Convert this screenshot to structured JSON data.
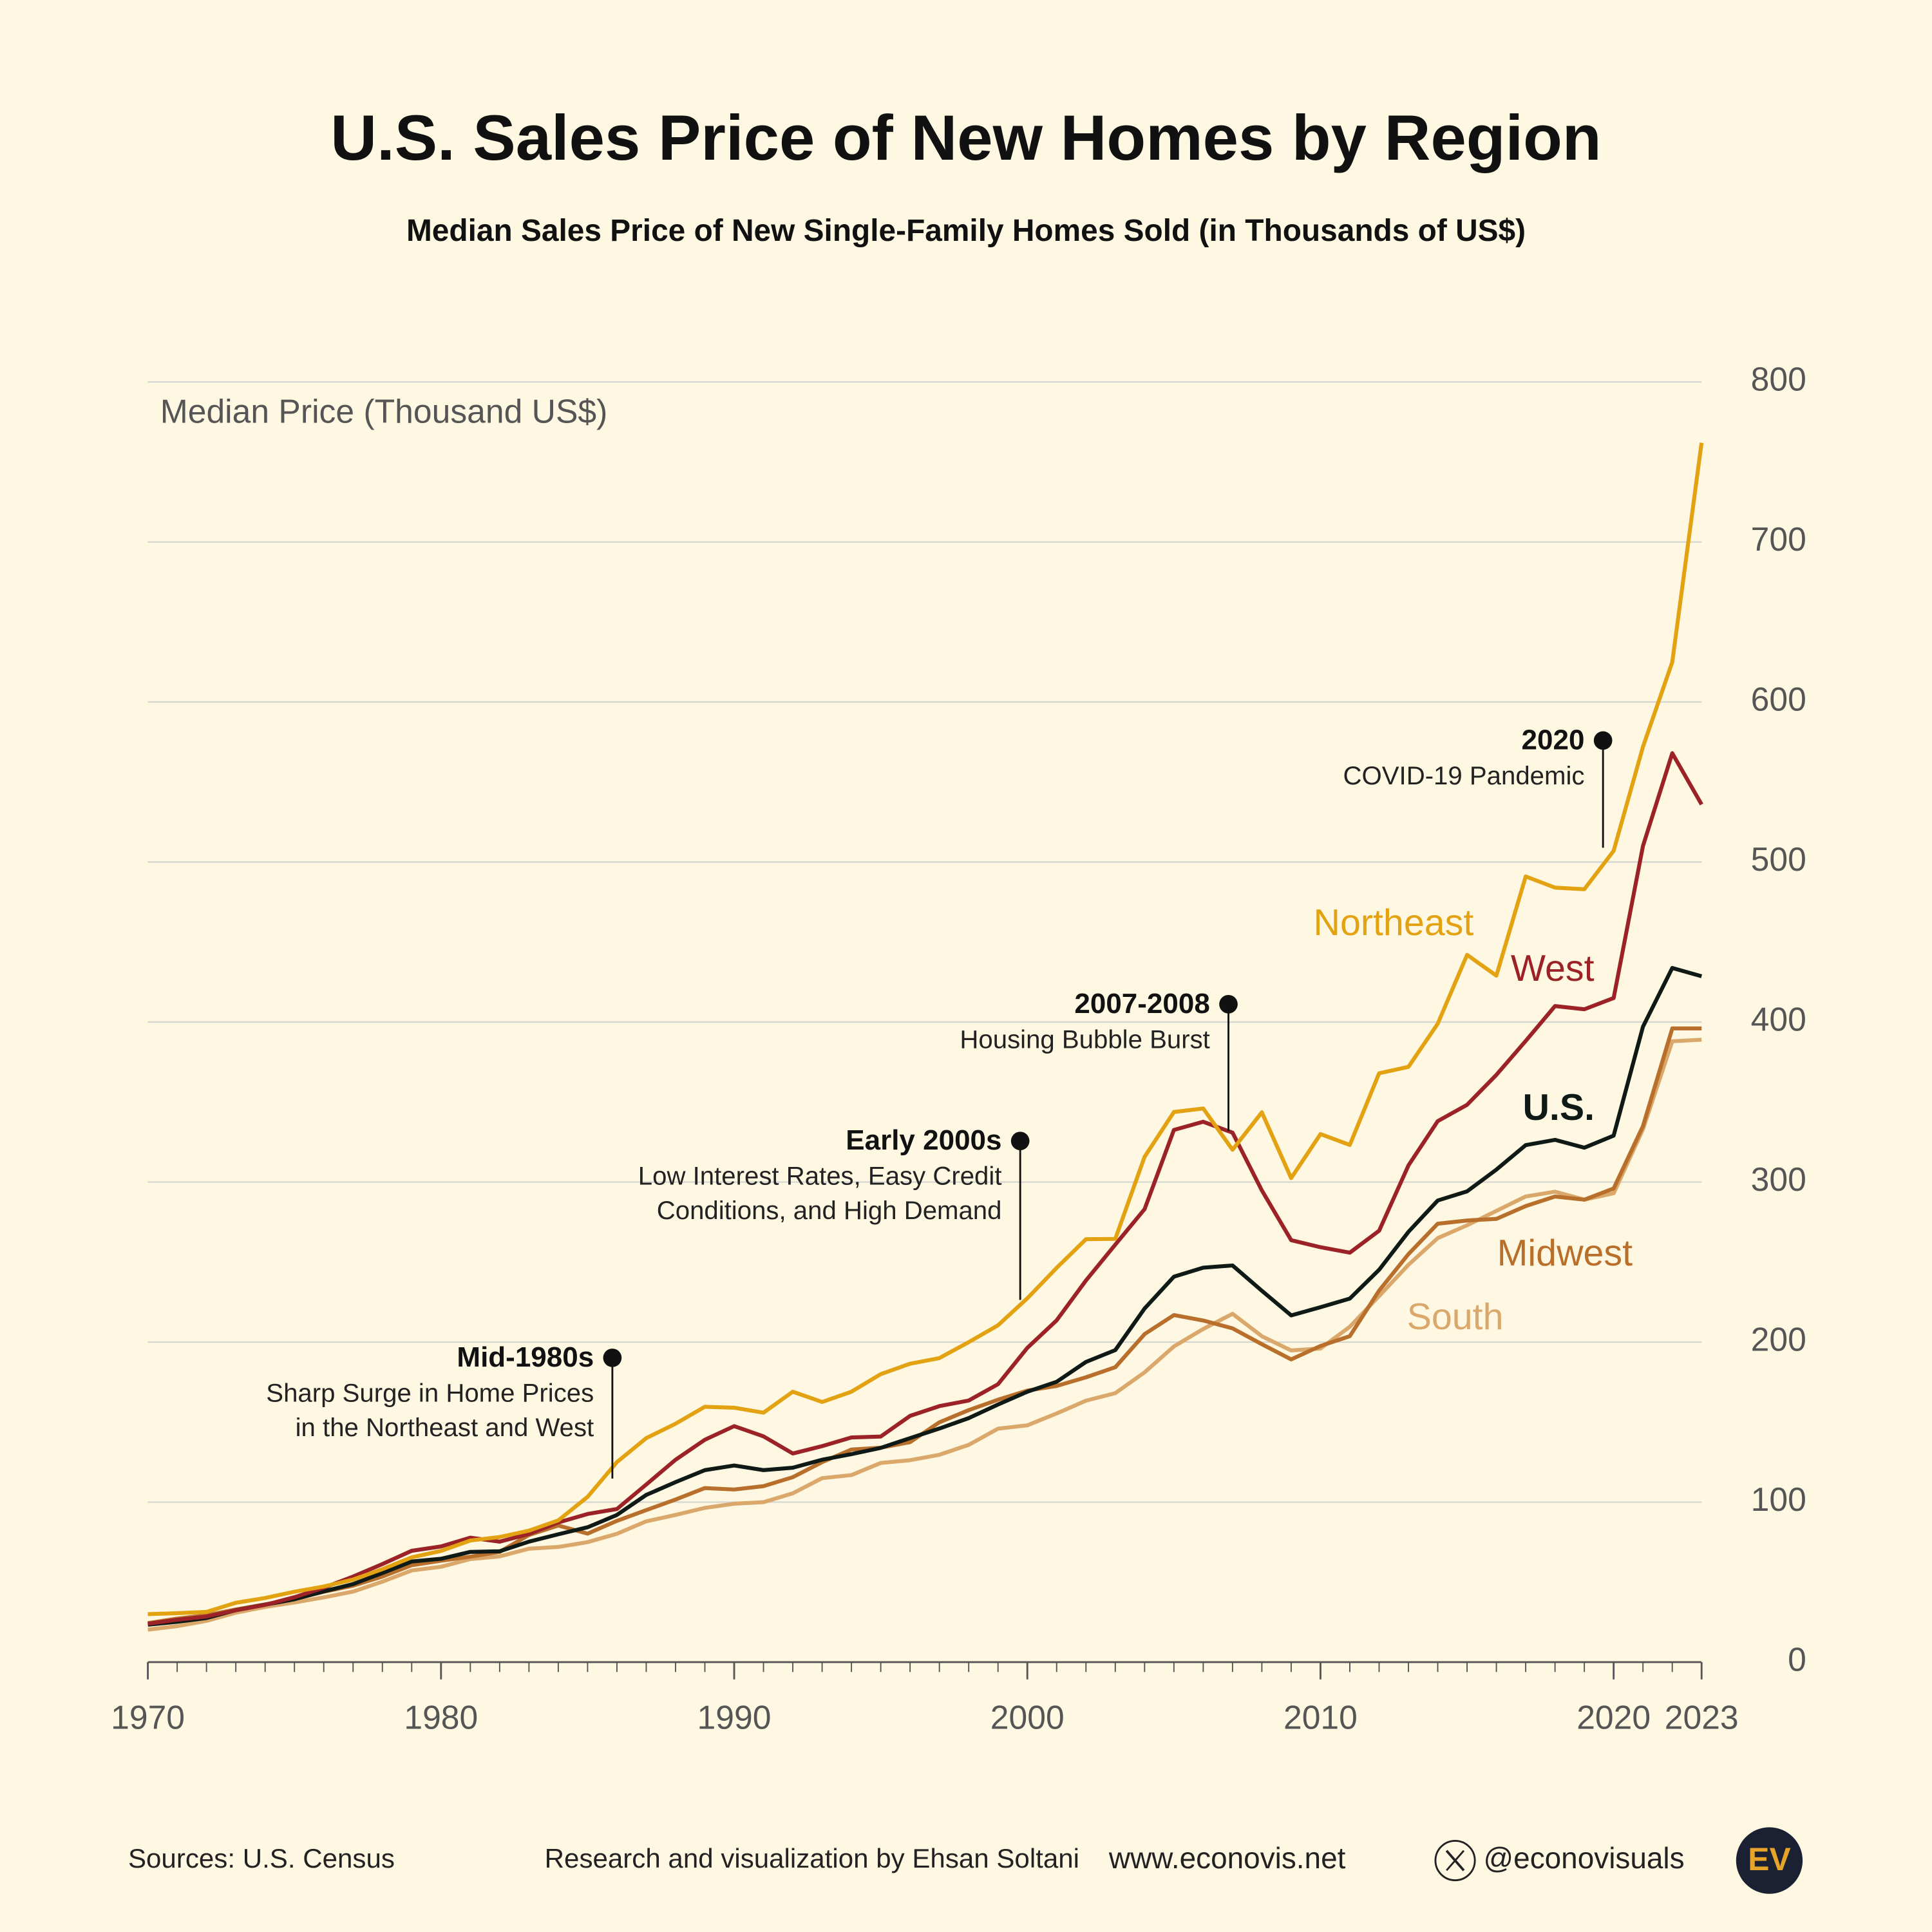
{
  "chart_data": {
    "type": "line",
    "title": "U.S. Sales Price of New Homes by Region",
    "subtitle": "Median Sales Price of New Single-Family Homes Sold (in Thousands of US$)",
    "y_axis_label": "Median Price (Thousand US$)",
    "x": [
      1970,
      1971,
      1972,
      1973,
      1974,
      1975,
      1976,
      1977,
      1978,
      1979,
      1980,
      1981,
      1982,
      1983,
      1984,
      1985,
      1986,
      1987,
      1988,
      1989,
      1990,
      1991,
      1992,
      1993,
      1994,
      1995,
      1996,
      1997,
      1998,
      1999,
      2000,
      2001,
      2002,
      2003,
      2004,
      2005,
      2006,
      2007,
      2008,
      2009,
      2010,
      2011,
      2012,
      2013,
      2014,
      2015,
      2016,
      2017,
      2018,
      2019,
      2020,
      2021,
      2022,
      2023
    ],
    "xlim": [
      1970,
      2023
    ],
    "xticks": [
      1970,
      1980,
      1990,
      2000,
      2010,
      2020,
      2023
    ],
    "ylim": [
      0,
      800
    ],
    "yticks": [
      0,
      100,
      200,
      300,
      400,
      500,
      600,
      700,
      800
    ],
    "grid": true,
    "series": [
      {
        "name": "South",
        "color": "#dba86c",
        "values": [
          20.3,
          22.5,
          25.8,
          30.9,
          34.5,
          37.3,
          40.5,
          44.1,
          50.3,
          57.3,
          59.6,
          64.4,
          66.1,
          70.9,
          72,
          75,
          80.2,
          88,
          92,
          96.4,
          99,
          100,
          105.5,
          115,
          116.9,
          124.5,
          126.2,
          129.6,
          135.8,
          145.9,
          148,
          155.4,
          163.4,
          168.1,
          181.1,
          197.3,
          208.2,
          217.7,
          203.7,
          194.8,
          196,
          209.6,
          228.8,
          248.3,
          265,
          273,
          282,
          291,
          294,
          289,
          293,
          333,
          388,
          389
        ]
      },
      {
        "name": "Midwest",
        "color": "#b96f2c",
        "values": [
          24.4,
          27.2,
          29.3,
          32.9,
          36.1,
          39.6,
          44,
          47.8,
          53.5,
          60.6,
          63.4,
          65.9,
          68.9,
          79.5,
          85.4,
          80.3,
          88.3,
          95,
          101.6,
          108.8,
          107.9,
          110,
          115.6,
          125,
          132.9,
          134,
          137.5,
          149.9,
          157.5,
          164,
          169.7,
          172.6,
          178,
          184.3,
          205,
          216.9,
          213.5,
          208.6,
          198.7,
          189.2,
          197.6,
          203.7,
          232.2,
          255,
          274,
          276,
          277,
          285,
          291,
          289,
          296,
          335,
          396,
          396
        ]
      },
      {
        "name": "U.S.",
        "color": "#0f1a17",
        "values": [
          23.4,
          25.2,
          27.6,
          32.5,
          35.9,
          39.3,
          44.2,
          48.8,
          55.7,
          62.9,
          64.6,
          68.9,
          69.3,
          75.3,
          79.9,
          84.3,
          92,
          104.5,
          112.5,
          120,
          122.9,
          120,
          121.5,
          126.5,
          130,
          133.9,
          140,
          146,
          152.5,
          161,
          169,
          175.2,
          187.6,
          195,
          221,
          240.9,
          246.5,
          247.9,
          232.1,
          216.7,
          221.8,
          227.2,
          245.2,
          268.9,
          288.5,
          294.2,
          307.8,
          323.1,
          326.4,
          321.5,
          329,
          397.1,
          433.8,
          428.6
        ]
      },
      {
        "name": "West",
        "color": "#9b2226",
        "values": [
          24,
          26.5,
          28.5,
          32.4,
          35.8,
          40.6,
          46.5,
          53.5,
          61.3,
          69.6,
          72.3,
          77.8,
          75.3,
          80.1,
          87.3,
          92.6,
          95.7,
          111,
          126.5,
          139,
          147.5,
          141.1,
          130.4,
          135,
          140.4,
          141,
          153.9,
          160,
          163.5,
          173.7,
          196.4,
          213.6,
          238.5,
          260.9,
          283.1,
          332.6,
          337.7,
          330.9,
          294.8,
          263.7,
          259.3,
          255.9,
          269.6,
          310.4,
          338.1,
          348.3,
          367,
          388.2,
          410,
          408,
          415,
          510,
          568,
          536
        ]
      },
      {
        "name": "Northeast",
        "color": "#e3a211",
        "values": [
          30,
          30.6,
          31.4,
          37.1,
          40.1,
          44,
          47.3,
          51.6,
          58.1,
          65.5,
          69.5,
          76,
          78.2,
          82.2,
          88.6,
          103.3,
          125,
          140,
          149,
          159.6,
          159,
          155.9,
          169,
          162.6,
          169,
          180,
          186.5,
          190,
          200,
          210.5,
          227.4,
          246.4,
          264.3,
          264.5,
          315.8,
          343.8,
          346,
          320.2,
          343.6,
          302.5,
          330,
          323.2,
          368,
          372,
          399,
          442,
          429,
          491,
          484,
          483,
          507,
          572,
          625,
          762
        ]
      }
    ],
    "annotations": [
      {
        "title": "Mid-1980s",
        "lines": [
          "Sharp Surge in Home Prices",
          "in the Northeast and West"
        ]
      },
      {
        "title": "Early 2000s",
        "lines": [
          "Low Interest Rates, Easy Credit",
          "Conditions, and High Demand"
        ]
      },
      {
        "title": "2007-2008",
        "lines": [
          "Housing Bubble Burst"
        ]
      },
      {
        "title": "2020",
        "lines": [
          "COVID-19 Pandemic"
        ]
      }
    ]
  },
  "footer": {
    "source": "Sources: U.S. Census",
    "credit": "Research and visualization by Ehsan Soltani",
    "website": "www.econovis.net",
    "handle": "@econovisuals",
    "logo": "EV"
  }
}
